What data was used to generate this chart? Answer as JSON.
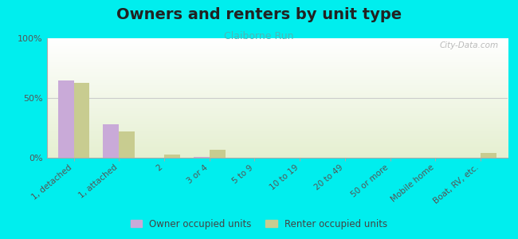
{
  "title": "Owners and renters by unit type",
  "subtitle": "Claiborne Run",
  "categories": [
    "1, detached",
    "1, attached",
    "2",
    "3 or 4",
    "5 to 9",
    "10 to 19",
    "20 to 49",
    "50 or more",
    "Mobile home",
    "Boat, RV, etc."
  ],
  "owner_values": [
    65,
    28,
    0,
    1,
    0,
    0,
    0,
    0,
    0,
    0
  ],
  "renter_values": [
    63,
    22,
    3,
    7,
    0,
    0,
    0,
    0,
    0,
    4
  ],
  "owner_color": "#c9aad8",
  "renter_color": "#c8cc90",
  "ylim": [
    0,
    100
  ],
  "yticks": [
    0,
    50,
    100
  ],
  "ytick_labels": [
    "0%",
    "50%",
    "100%"
  ],
  "outer_bg": "#00eeee",
  "bar_width": 0.35,
  "title_fontsize": 14,
  "subtitle_fontsize": 9,
  "legend_labels": [
    "Owner occupied units",
    "Renter occupied units"
  ],
  "watermark": "City-Data.com"
}
